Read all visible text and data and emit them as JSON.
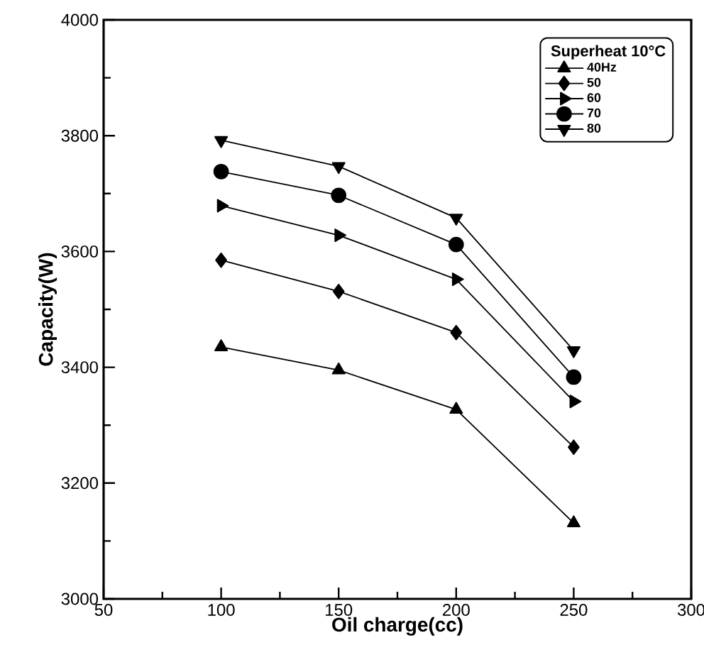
{
  "chart_data": {
    "type": "line",
    "xlabel": "Oil charge(cc)",
    "ylabel": "Capacity(W)",
    "legend_title": "Superheat 10°C",
    "x": [
      100,
      150,
      200,
      250
    ],
    "series": [
      {
        "name": "40Hz",
        "color": "#000000",
        "marker": "triangle",
        "values": [
          3435,
          3395,
          3327,
          3131
        ]
      },
      {
        "name": "50",
        "color": "#000000",
        "marker": "diamond",
        "values": [
          3585,
          3531,
          3460,
          3262
        ]
      },
      {
        "name": "60",
        "color": "#000000",
        "marker": "triangle-right",
        "values": [
          3679,
          3628,
          3552,
          3341
        ]
      },
      {
        "name": "70",
        "color": "#000000",
        "marker": "circle",
        "values": [
          3738,
          3697,
          3612,
          3383
        ]
      },
      {
        "name": "80",
        "color": "#000000",
        "marker": "triangle-down",
        "values": [
          3792,
          3747,
          3658,
          3429
        ]
      }
    ],
    "xlim": [
      50,
      300
    ],
    "xticks": [
      50,
      100,
      150,
      200,
      250,
      300
    ],
    "ylim": [
      3000,
      4000
    ],
    "yticks": [
      3000,
      3200,
      3400,
      3600,
      3800,
      4000
    ],
    "legend": "top right",
    "grid": false,
    "line_style": "solid"
  }
}
